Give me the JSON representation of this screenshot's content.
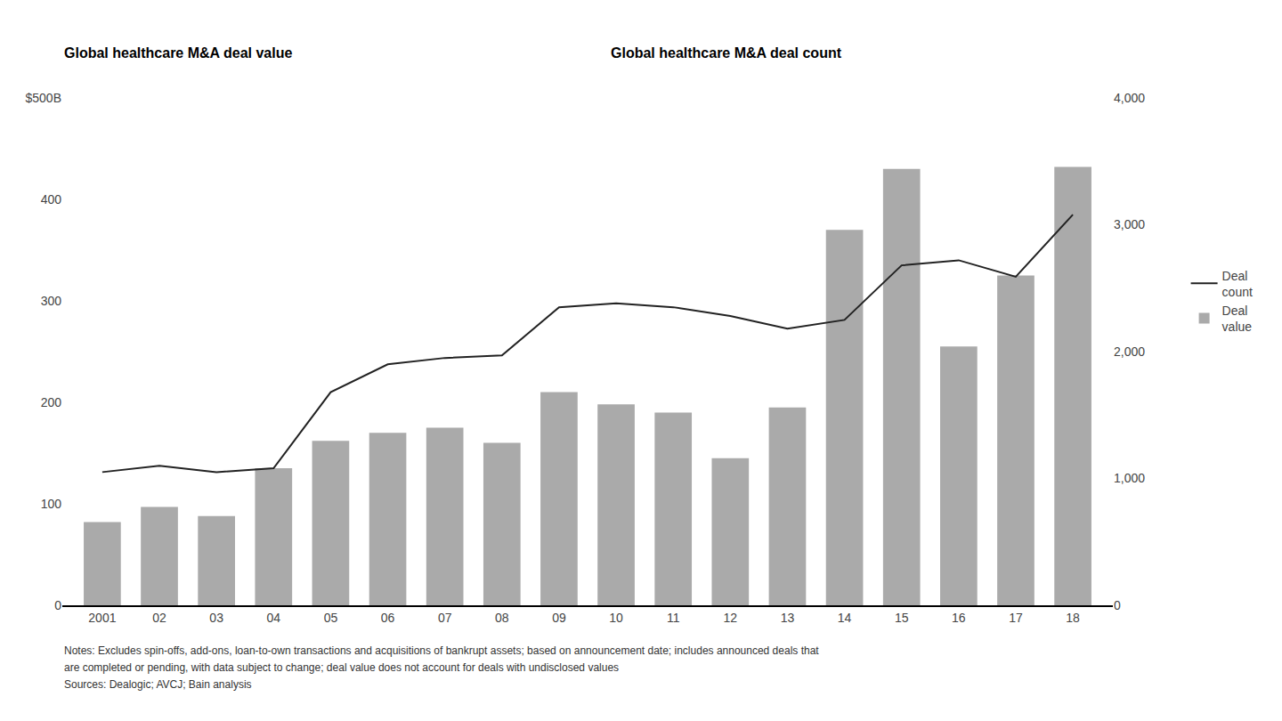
{
  "chart_data": {
    "type": "bar",
    "ylabel": "Global healthcare M&A deal value",
    "y2label": "Global healthcare M&A deal count",
    "categories": [
      "2001",
      "02",
      "03",
      "04",
      "05",
      "06",
      "07",
      "08",
      "09",
      "10",
      "11",
      "12",
      "13",
      "14",
      "15",
      "16",
      "17",
      "18"
    ],
    "series": [
      {
        "name": "Deal\nvalue",
        "type": "bar",
        "color": "#aaaaaa",
        "values": [
          82,
          97,
          88,
          135,
          162,
          170,
          175,
          160,
          210,
          198,
          190,
          145,
          195,
          370,
          430,
          255,
          325,
          432
        ]
      },
      {
        "name": "Deal\ncount",
        "type": "line",
        "color": "#222222",
        "axis": "y2",
        "values": [
          1050,
          1100,
          1050,
          1080,
          1680,
          1900,
          1950,
          1970,
          2350,
          2380,
          2350,
          2280,
          2180,
          2250,
          2680,
          2720,
          2590,
          3080
        ]
      }
    ],
    "ylim": [
      0,
      500
    ],
    "yticks": [
      0,
      100,
      200,
      300,
      400,
      {
        "value": 500,
        "label": "$500B"
      }
    ],
    "y2lim": [
      0,
      4000
    ],
    "y2ticks": [
      0,
      {
        "value": 1000,
        "label": "1,000"
      },
      {
        "value": 2000,
        "label": "2,000"
      },
      {
        "value": 3000,
        "label": "3,000"
      },
      {
        "value": 4000,
        "label": "4,000"
      }
    ],
    "grid": false,
    "legend": "right",
    "annotations": [
      "Notes: Excludes spin-offs, add-ons, loan-to-own transactions and acquisitions of bankrupt assets; based on announcement date; includes announced deals that",
      "are completed or pending, with data subject to change; deal value does not account for deals with undisclosed values",
      "Sources: Dealogic; AVCJ; Bain analysis"
    ]
  }
}
